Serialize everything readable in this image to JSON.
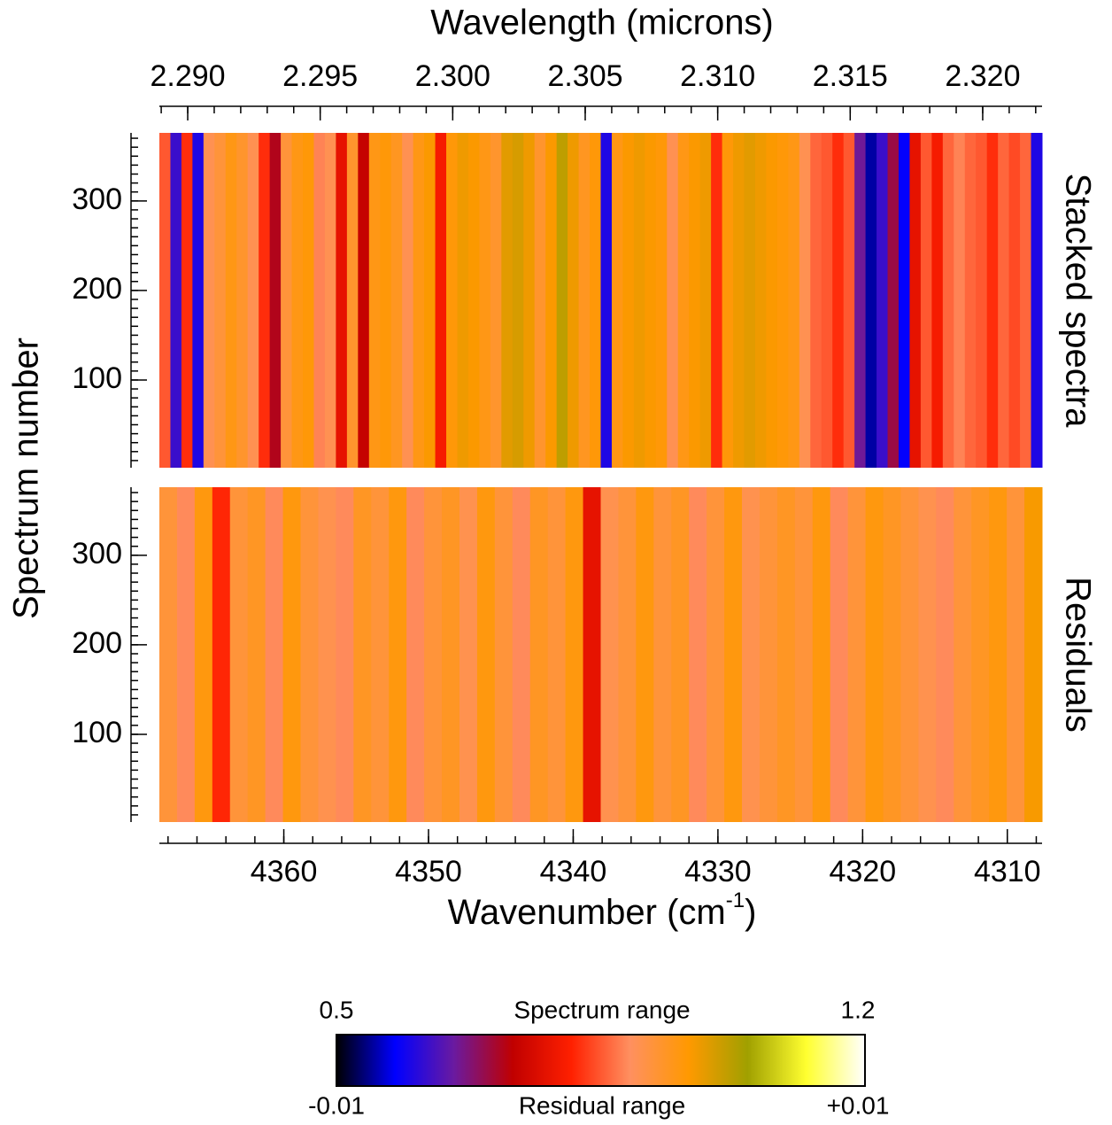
{
  "chart_data": {
    "type": "heatmap",
    "top_axis": {
      "label": "Wavelength (microns)",
      "xlim": [
        2.28893,
        2.32224
      ],
      "xticks": [
        {
          "value": 2.29,
          "label": "2.290"
        },
        {
          "value": 2.295,
          "label": "2.295"
        },
        {
          "value": 2.3,
          "label": "2.300"
        },
        {
          "value": 2.305,
          "label": "2.305"
        },
        {
          "value": 2.31,
          "label": "2.310"
        },
        {
          "value": 2.315,
          "label": "2.315"
        },
        {
          "value": 2.32,
          "label": "2.320"
        }
      ],
      "minor_step": 0.001
    },
    "x_label": {
      "text": "Wavenumber (cm",
      "superscript": "-1",
      "suffix": ")"
    },
    "xlim": [
      4368.6,
      4307.6
    ],
    "xticks": [
      4360,
      4350,
      4340,
      4330,
      4320,
      4310
    ],
    "x_minor_step": 2,
    "y_label": "Spectrum number",
    "panels": [
      {
        "name": "Stacked spectra",
        "ylim": [
          2,
          376
        ],
        "yticks": [
          100,
          200,
          300
        ],
        "y_minor_step": 10,
        "values": [
          0.85,
          0.62,
          0.82,
          0.6,
          0.9,
          0.92,
          0.95,
          0.93,
          0.9,
          0.82,
          0.72,
          0.92,
          0.95,
          0.96,
          0.88,
          0.9,
          0.78,
          0.93,
          0.74,
          0.95,
          0.96,
          0.94,
          0.9,
          0.95,
          0.97,
          0.8,
          0.96,
          0.98,
          0.97,
          0.95,
          0.93,
          0.99,
          1.0,
          0.98,
          0.93,
          0.97,
          1.02,
          0.98,
          0.94,
          0.96,
          0.6,
          0.95,
          0.97,
          0.98,
          0.97,
          0.96,
          0.9,
          0.95,
          0.97,
          0.98,
          0.82,
          0.96,
          0.98,
          0.99,
          0.98,
          0.97,
          0.96,
          0.95,
          0.9,
          0.86,
          0.85,
          0.82,
          0.85,
          0.66,
          0.55,
          0.62,
          0.7,
          0.58,
          0.78,
          0.85,
          0.8,
          0.86,
          0.88,
          0.86,
          0.85,
          0.82,
          0.86,
          0.84,
          0.86,
          0.6
        ]
      },
      {
        "name": "Residuals",
        "ylim": [
          2,
          376
        ],
        "yticks": [
          100,
          200,
          300
        ],
        "y_minor_step": 10,
        "values": [
          0.002,
          0.001,
          0.003,
          -0.001,
          0.002,
          0.0025,
          0.001,
          0.003,
          0.002,
          0.0015,
          0.001,
          0.0025,
          0.002,
          0.003,
          0.001,
          0.002,
          0.0025,
          0.0015,
          0.003,
          0.002,
          0.001,
          0.0025,
          0.002,
          0.003,
          -0.002,
          0.0015,
          0.002,
          0.003,
          0.002,
          0.0025,
          0.001,
          0.002,
          0.003,
          0.0015,
          0.002,
          0.0025,
          0.002,
          0.003,
          0.001,
          0.002,
          0.003,
          0.0025,
          0.002,
          0.0015,
          0.001,
          0.002,
          0.0025,
          0.003,
          0.002,
          0.0035
        ]
      }
    ],
    "colorbar": {
      "colors": [
        "#000000",
        "#0000ff",
        "#6a1aa0",
        "#c00000",
        "#ff2000",
        "#ff9060",
        "#ff9900",
        "#a0a000",
        "#ffff30",
        "#ffffff"
      ],
      "top_label": "Spectrum range",
      "bottom_label": "Residual range",
      "top_ticks": [
        0.5,
        1.2
      ],
      "bottom_ticks": [
        -0.01,
        {
          "value": 0.01,
          "label": "+0.01"
        }
      ]
    }
  }
}
